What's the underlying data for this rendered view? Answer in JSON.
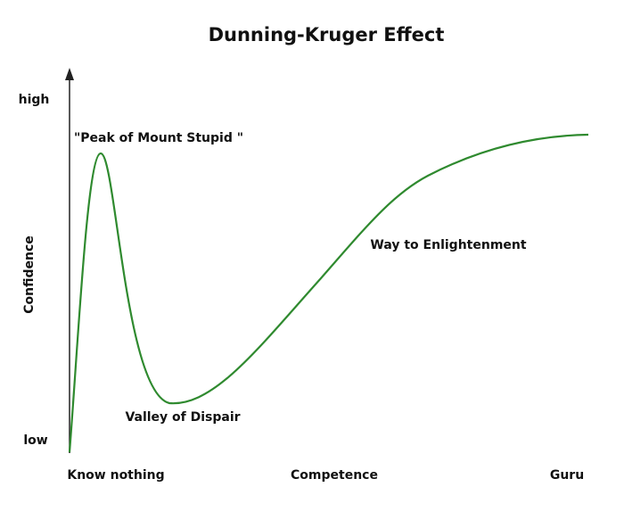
{
  "title": "Dunning-Kruger Effect",
  "y_axis": {
    "label": "Confidence",
    "high": "high",
    "low": "low"
  },
  "x_axis": {
    "label": "Competence",
    "start": "Know nothing",
    "end": "Guru"
  },
  "annotations": {
    "peak": "\"Peak of Mount Stupid \"",
    "valley": "Valley of Dispair",
    "slope": "Way to Enlightenment"
  }
}
